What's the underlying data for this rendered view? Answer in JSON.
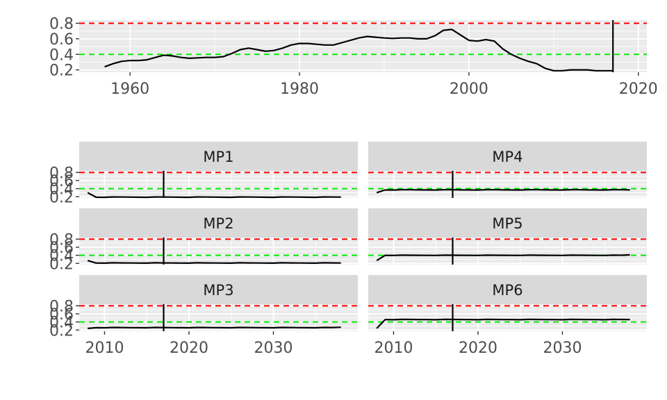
{
  "chart_data": [
    {
      "type": "line",
      "panel": "top",
      "xlim": [
        1954,
        2021
      ],
      "ylim": [
        0.17,
        0.84
      ],
      "x_ticks": [
        1960,
        1980,
        2000,
        2020
      ],
      "y_ticks": [
        0.2,
        0.4,
        0.6,
        0.8
      ],
      "x_tick_labels": [
        "1960",
        "1980",
        "2000",
        "2020"
      ],
      "y_tick_labels": [
        "0.2",
        "0.4",
        "0.6",
        "0.8"
      ],
      "hlines": [
        {
          "y": 0.8,
          "color": "#ff0000",
          "style": "dashed"
        },
        {
          "y": 0.4,
          "color": "#00ee00",
          "style": "dashed"
        }
      ],
      "vline": {
        "x": 2017,
        "color": "#000000"
      },
      "grid": true,
      "series": [
        {
          "color": "#000000",
          "x": [
            1957,
            1958,
            1959,
            1960,
            1961,
            1962,
            1963,
            1964,
            1965,
            1966,
            1967,
            1968,
            1969,
            1970,
            1971,
            1972,
            1973,
            1974,
            1975,
            1976,
            1977,
            1978,
            1979,
            1980,
            1981,
            1982,
            1983,
            1984,
            1985,
            1986,
            1987,
            1988,
            1989,
            1990,
            1991,
            1992,
            1993,
            1994,
            1995,
            1996,
            1997,
            1998,
            1999,
            2000,
            2001,
            2002,
            2003,
            2004,
            2005,
            2006,
            2007,
            2008,
            2009,
            2010,
            2011,
            2012,
            2013,
            2014,
            2015,
            2016,
            2017
          ],
          "y": [
            0.24,
            0.28,
            0.31,
            0.32,
            0.32,
            0.33,
            0.36,
            0.39,
            0.38,
            0.36,
            0.35,
            0.355,
            0.36,
            0.36,
            0.37,
            0.41,
            0.46,
            0.48,
            0.46,
            0.44,
            0.45,
            0.48,
            0.52,
            0.54,
            0.54,
            0.53,
            0.52,
            0.52,
            0.55,
            0.58,
            0.61,
            0.63,
            0.62,
            0.61,
            0.605,
            0.61,
            0.61,
            0.6,
            0.6,
            0.64,
            0.71,
            0.72,
            0.65,
            0.58,
            0.57,
            0.59,
            0.57,
            0.47,
            0.4,
            0.35,
            0.31,
            0.28,
            0.22,
            0.19,
            0.19,
            0.2,
            0.2,
            0.2,
            0.19,
            0.19,
            0.19
          ]
        }
      ]
    },
    {
      "type": "line",
      "panel": "facets",
      "xlim": [
        2007,
        2040
      ],
      "ylim": [
        0.17,
        0.84
      ],
      "x_ticks": [
        2010,
        2020,
        2030
      ],
      "y_ticks": [
        0.2,
        0.4,
        0.6,
        0.8
      ],
      "x_tick_labels": [
        "2010",
        "2020",
        "2030"
      ],
      "y_tick_labels": [
        "0.2",
        "0.4",
        "0.6",
        "0.8"
      ],
      "hlines": [
        {
          "y": 0.8,
          "color": "#ff0000",
          "style": "dashed"
        },
        {
          "y": 0.4,
          "color": "#00ee00",
          "style": "dashed"
        }
      ],
      "vline": {
        "x": 2017,
        "color": "#000000"
      },
      "grid": true,
      "facets": [
        {
          "label": "MP1",
          "x_start": 2008,
          "x_end": 2038,
          "first": 0.3,
          "level": 0.19,
          "last": 0.19
        },
        {
          "label": "MP2",
          "x_start": 2008,
          "x_end": 2038,
          "first": 0.27,
          "level": 0.21,
          "last": 0.21
        },
        {
          "label": "MP3",
          "x_start": 2008,
          "x_end": 2038,
          "first": 0.24,
          "level": 0.26,
          "last": 0.27
        },
        {
          "label": "MP4",
          "x_start": 2008,
          "x_end": 2038,
          "first": 0.3,
          "level": 0.37,
          "last": 0.37
        },
        {
          "label": "MP5",
          "x_start": 2008,
          "x_end": 2038,
          "first": 0.27,
          "level": 0.4,
          "last": 0.41
        },
        {
          "label": "MP6",
          "x_start": 2008,
          "x_end": 2038,
          "first": 0.24,
          "level": 0.46,
          "last": 0.46
        }
      ]
    }
  ]
}
